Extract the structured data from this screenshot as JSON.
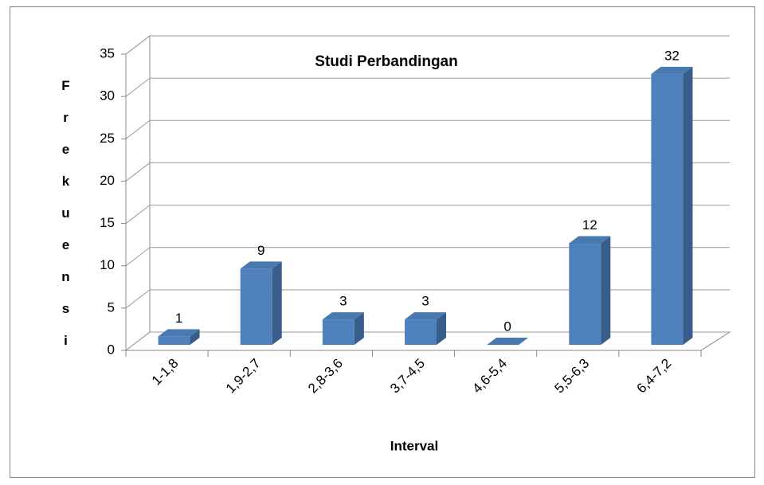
{
  "chart_data": {
    "type": "bar3d",
    "title": "Studi Perbandingan",
    "x_label": "Interval",
    "y_label": "Frekuensi",
    "categories": [
      "1-1,8",
      "1,9-2,7",
      "2,8-3,6",
      "3,7-4,5",
      "4,6-5,4",
      "5,5-6,3",
      "6,4-7,2"
    ],
    "values": [
      1,
      9,
      3,
      3,
      0,
      12,
      32
    ],
    "color": "#4f81bd",
    "ylim": [
      0,
      35
    ],
    "yticks": [
      0,
      5,
      10,
      15,
      20,
      25,
      30,
      35
    ],
    "grid": true
  }
}
